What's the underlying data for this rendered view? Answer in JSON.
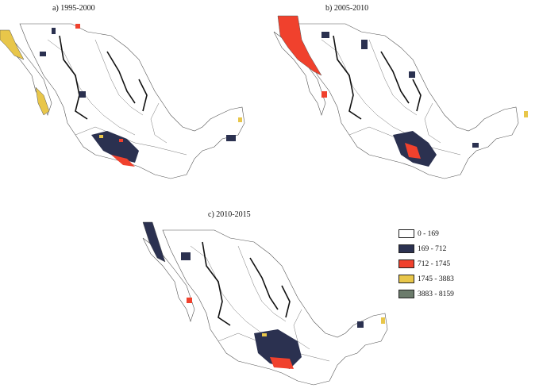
{
  "panels": {
    "a": {
      "title": "a) 1995-2000"
    },
    "b": {
      "title": "b) 2005-2010"
    },
    "c": {
      "title": "c) 2010-2015"
    }
  },
  "legend": {
    "items": [
      {
        "label": "0 - 169",
        "color": "#ffffff"
      },
      {
        "label": "169 - 712",
        "color": "#2b3150"
      },
      {
        "label": "712 - 1745",
        "color": "#f0412d"
      },
      {
        "label": "1745 - 3883",
        "color": "#e8c64a"
      },
      {
        "label": "3883 - 8159",
        "color": "#6b7b6b"
      }
    ]
  }
}
